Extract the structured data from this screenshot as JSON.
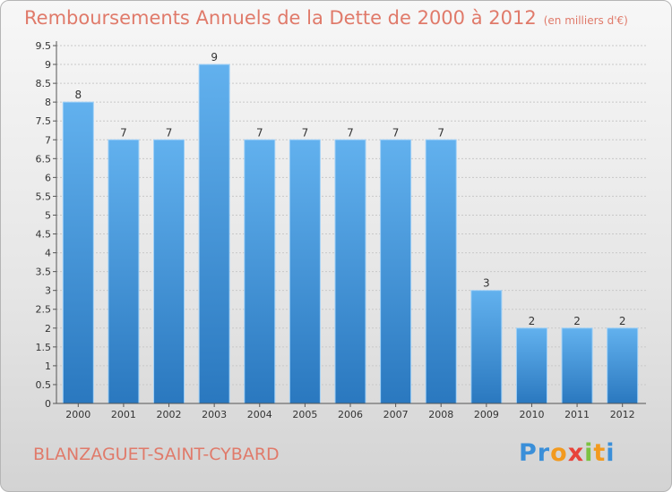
{
  "title": "Remboursements Annuels de la Dette de 2000 à 2012",
  "subtitle": "(en milliers d'€)",
  "commune": "BLANZAGUET-SAINT-CYBARD",
  "logo": {
    "letters": [
      "P",
      "r",
      "o",
      "x",
      "i",
      "t",
      "i"
    ],
    "colors": [
      "#3a8fd9",
      "#3a8fd9",
      "#f29a1f",
      "#e8433a",
      "#7cc242",
      "#f29a1f",
      "#3a8fd9"
    ]
  },
  "colors": {
    "bar_top": "#62b1ee",
    "bar_bottom": "#2a78bf",
    "title": "#e07a6a",
    "axis": "#555555",
    "grid": "#c8c8c8"
  },
  "chart_data": {
    "type": "bar",
    "categories": [
      "2000",
      "2001",
      "2002",
      "2003",
      "2004",
      "2005",
      "2006",
      "2007",
      "2008",
      "2009",
      "2010",
      "2011",
      "2012"
    ],
    "values": [
      8,
      7,
      7,
      9,
      7,
      7,
      7,
      7,
      7,
      3,
      2,
      2,
      2
    ],
    "labels": [
      "8",
      "7",
      "7",
      "9",
      "7",
      "7",
      "7",
      "7",
      "7",
      "3",
      "2",
      "2",
      "2"
    ],
    "yticks": [
      "0",
      "0.5",
      "1",
      "1.5",
      "2",
      "2.5",
      "3",
      "3.5",
      "4",
      "4.5",
      "5",
      "5.5",
      "6",
      "6.5",
      "7",
      "7.5",
      "8",
      "8.5",
      "9",
      "9.5"
    ],
    "ylim": [
      0,
      9.5
    ],
    "ystep": 0.5,
    "grid": true
  }
}
